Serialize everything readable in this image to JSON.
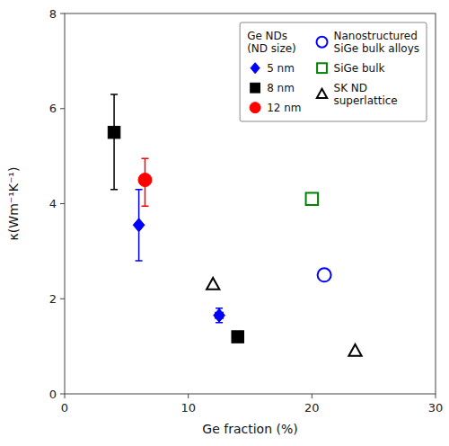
{
  "chart_data": {
    "type": "scatter",
    "xlabel": "Ge fraction (%)",
    "ylabel": "κ(Wm⁻¹K⁻¹)",
    "xlim": [
      0,
      30
    ],
    "ylim": [
      0,
      8
    ],
    "xticks": [
      0,
      10,
      20,
      30
    ],
    "yticks": [
      0,
      2,
      4,
      6,
      8
    ],
    "grid": false,
    "legend": "upper right",
    "legend_title": "Ge NDs\n(ND size)",
    "series": [
      {
        "name": "5 nm",
        "color": "#0000ff",
        "marker": "diamond",
        "x": [
          6.0,
          12.5
        ],
        "values": [
          3.55,
          1.65
        ],
        "yerr": [
          0.75,
          0.15
        ],
        "xerr": [
          0.15,
          0.3
        ]
      },
      {
        "name": "8 nm",
        "color": "#000000",
        "marker": "square",
        "x": [
          4.0,
          14.0
        ],
        "values": [
          5.5,
          1.2
        ],
        "yerr_low": [
          1.2,
          null
        ],
        "yerr_high": [
          0.8,
          null
        ],
        "xerr": [
          null,
          0.3
        ]
      },
      {
        "name": "12 nm",
        "color": "#ff0000",
        "marker": "circle",
        "x": [
          6.5
        ],
        "values": [
          4.5
        ],
        "yerr_low": [
          0.55
        ],
        "yerr_high": [
          0.45
        ],
        "xerr": [
          0.3
        ]
      },
      {
        "name": "Nanostructured\nSiGe bulk alloys",
        "color": "#0000ff",
        "marker": "circle-open",
        "x": [
          21.0
        ],
        "values": [
          2.5
        ]
      },
      {
        "name": "SiGe bulk",
        "color": "#008000",
        "marker": "square-open",
        "x": [
          20.0
        ],
        "values": [
          4.1
        ]
      },
      {
        "name": "SK ND\nsuperlattice",
        "color": "#000000",
        "marker": "triangle-open",
        "x": [
          12.0,
          23.5
        ],
        "values": [
          2.3,
          0.9
        ]
      }
    ]
  }
}
